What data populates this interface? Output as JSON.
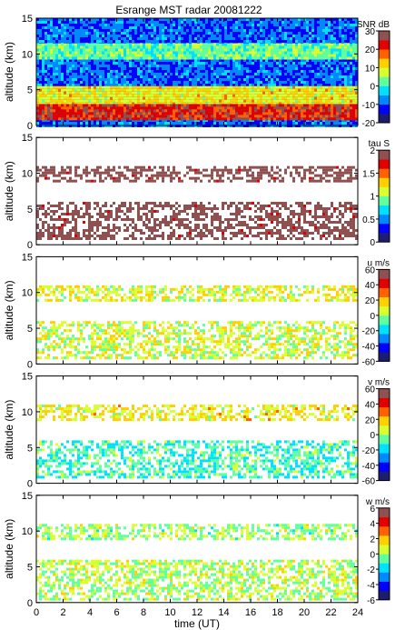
{
  "chart_data": {
    "type": "heatmap",
    "title": "Esrange MST radar 20081222",
    "xlabel": "time (UT)",
    "xlim": [
      0,
      24
    ],
    "xticks": [
      0,
      2,
      4,
      6,
      8,
      10,
      12,
      14,
      16,
      18,
      20,
      22,
      24
    ],
    "panels": [
      {
        "ylabel": "altitude (km)",
        "ylim": [
          0,
          15
        ],
        "yticks": [
          0,
          5,
          10,
          15
        ],
        "colorbar_label": "SNR dB",
        "clim": [
          -20,
          30
        ],
        "colorbar_ticks": [
          30,
          20,
          10,
          0,
          -10,
          -20
        ],
        "layers": [
          {
            "alt_from": 0,
            "alt_to": 15,
            "level": 0.22
          },
          {
            "alt_from": 9.5,
            "alt_to": 11.5,
            "level": 0.45
          },
          {
            "alt_from": 3,
            "alt_to": 5.5,
            "level": 0.6
          },
          {
            "alt_from": 1,
            "alt_to": 3,
            "level": 0.85
          }
        ]
      },
      {
        "ylabel": "altitude (km)",
        "ylim": [
          0,
          15
        ],
        "yticks": [
          0,
          5,
          10,
          15
        ],
        "colorbar_label": "tau S",
        "clim": [
          0,
          2
        ],
        "colorbar_ticks": [
          2,
          1.5,
          1,
          0.5,
          0
        ],
        "layers": [
          {
            "alt_from": 9,
            "alt_to": 11,
            "level": 1.0
          },
          {
            "alt_from": 1,
            "alt_to": 6,
            "level": 1.0
          }
        ]
      },
      {
        "ylabel": "altitude (km)",
        "ylim": [
          0,
          15
        ],
        "yticks": [
          0,
          5,
          10,
          15
        ],
        "colorbar_label": "u m/s",
        "clim": [
          -60,
          60
        ],
        "colorbar_ticks": [
          60,
          40,
          20,
          0,
          -20,
          -40,
          -60
        ],
        "layers": [
          {
            "alt_from": 9,
            "alt_to": 11,
            "level": 0.58
          },
          {
            "alt_from": 1,
            "alt_to": 6,
            "level": 0.55
          }
        ]
      },
      {
        "ylabel": "altitude (km)",
        "ylim": [
          0,
          15
        ],
        "yticks": [
          0,
          5,
          10,
          15
        ],
        "colorbar_label": "v m/s",
        "clim": [
          -60,
          60
        ],
        "colorbar_ticks": [
          60,
          40,
          20,
          0,
          -20,
          -40,
          -60
        ],
        "layers": [
          {
            "alt_from": 9,
            "alt_to": 11,
            "level": 0.6
          },
          {
            "alt_from": 1,
            "alt_to": 6,
            "level": 0.42
          }
        ]
      },
      {
        "ylabel": "altitude (km)",
        "ylim": [
          0,
          15
        ],
        "yticks": [
          0,
          5,
          10,
          15
        ],
        "colorbar_label": "w m/s",
        "clim": [
          -6,
          6
        ],
        "colorbar_ticks": [
          6,
          4,
          2,
          0,
          -2,
          -4,
          -6
        ],
        "layers": [
          {
            "alt_from": 9,
            "alt_to": 11,
            "level": 0.5
          },
          {
            "alt_from": 0.5,
            "alt_to": 6,
            "level": 0.52
          }
        ]
      }
    ],
    "colormap": [
      "#1c1c70",
      "#0000ff",
      "#0088ff",
      "#00e0ff",
      "#60ffa0",
      "#d8ff30",
      "#ffd000",
      "#ff6000",
      "#e00000",
      "#905050"
    ]
  }
}
